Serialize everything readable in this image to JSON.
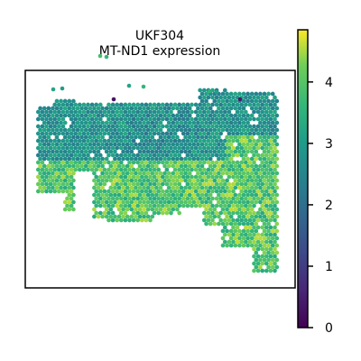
{
  "chart_data": {
    "type": "scatter",
    "title_lines": [
      "UKF304",
      "MT-ND1 expression"
    ],
    "xlabel": "",
    "ylabel": "",
    "axes_visible": false,
    "grid": false,
    "colormap": "viridis",
    "colorbar": {
      "range": [
        0,
        4.85
      ],
      "ticks": [
        0,
        1,
        2,
        3,
        4
      ],
      "tick_labels": [
        "0",
        "1",
        "2",
        "3",
        "4"
      ],
      "placement": "right"
    },
    "spatial_regions": [
      {
        "name": "upper band",
        "value_range": [
          2.3,
          3.3
        ]
      },
      {
        "name": "lower band",
        "value_range": [
          3.3,
          4.6
        ]
      }
    ],
    "colors": {
      "frame": "#000000",
      "background": "#ffffff",
      "viridis_0": "#440154",
      "viridis_25": "#3b528b",
      "viridis_50": "#21918c",
      "viridis_75": "#5ec962",
      "viridis_100": "#fde725"
    }
  }
}
